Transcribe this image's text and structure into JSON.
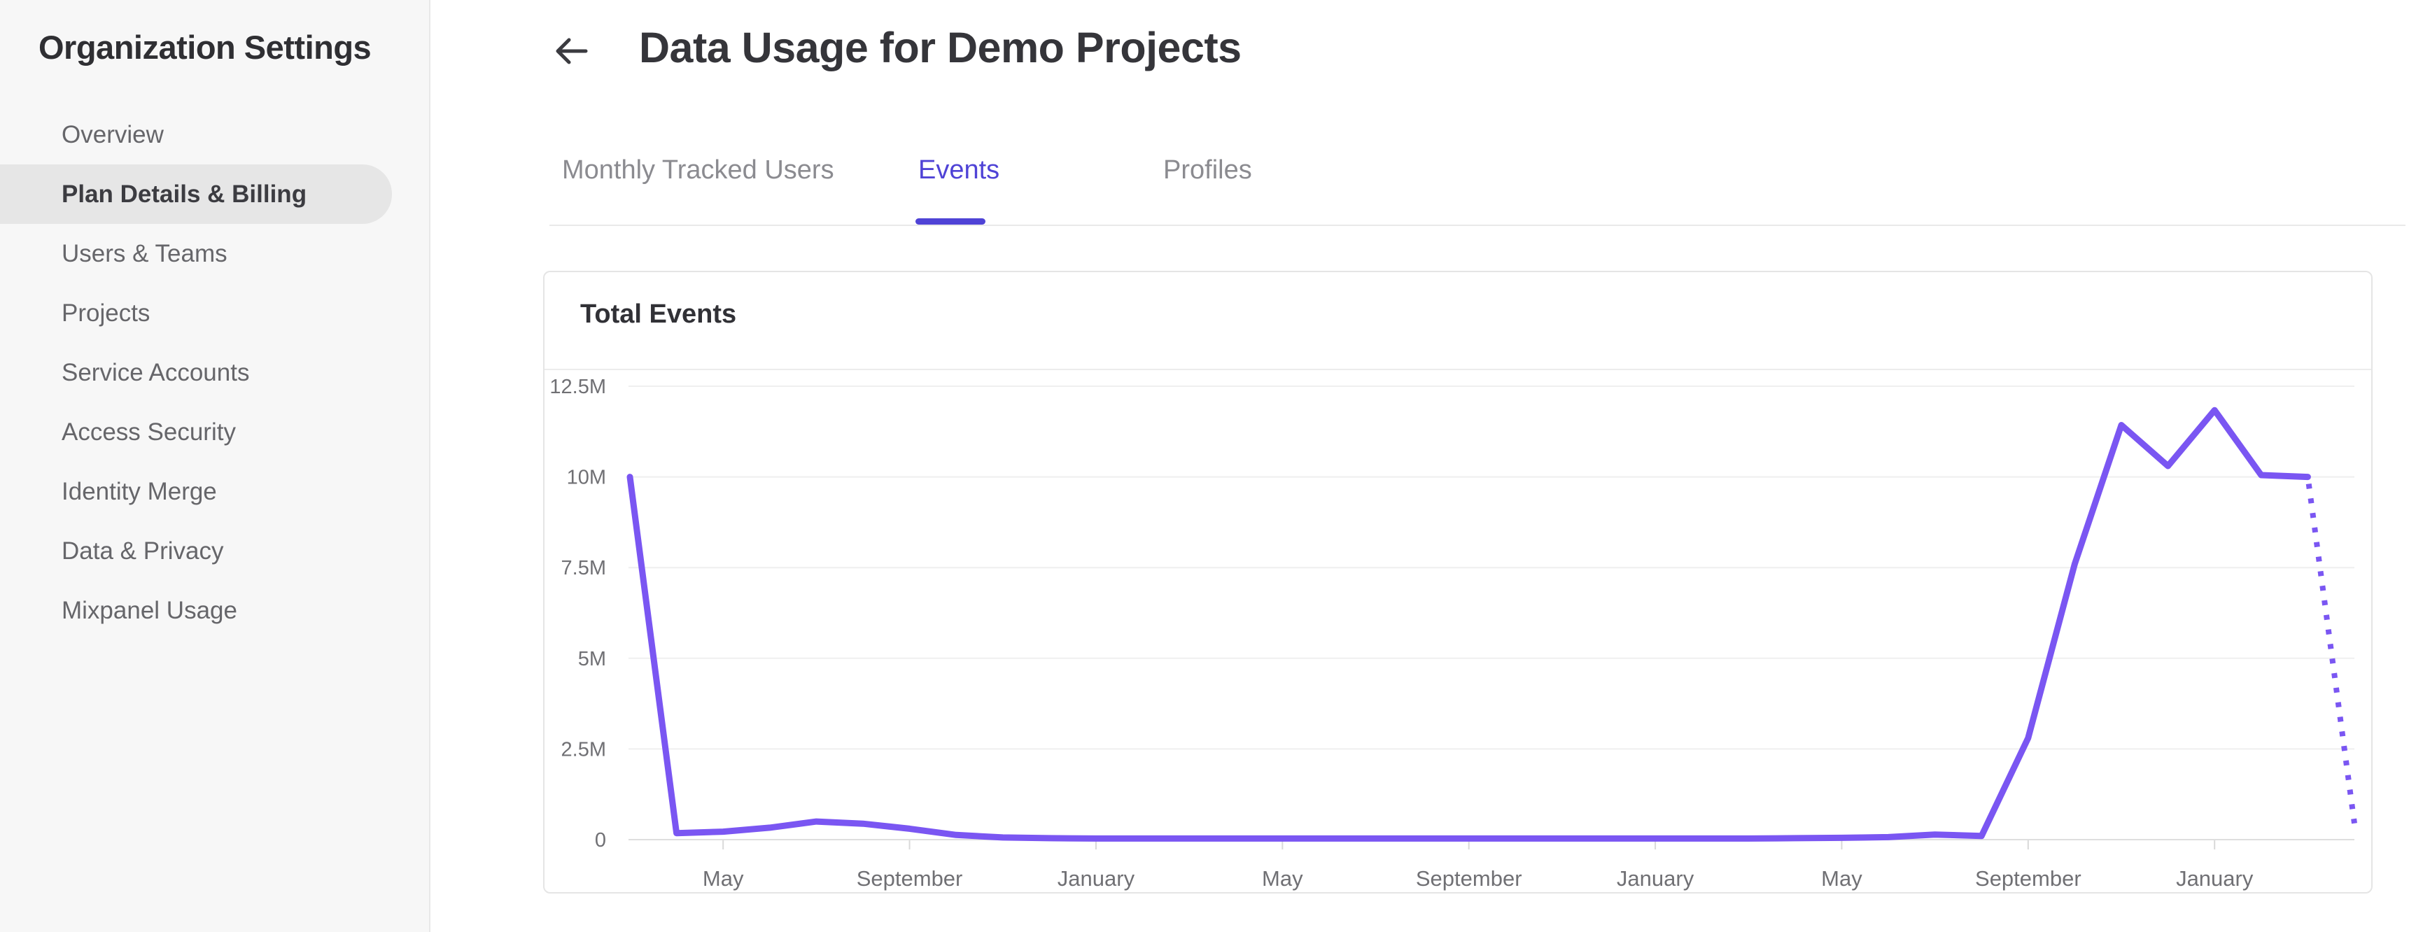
{
  "sidebar": {
    "title": "Organization Settings",
    "selected_bg": "#e6e6e6",
    "items": [
      {
        "label": "Overview",
        "active": false
      },
      {
        "label": "Plan Details & Billing",
        "active": true
      },
      {
        "label": "Users & Teams",
        "active": false
      },
      {
        "label": "Projects",
        "active": false
      },
      {
        "label": "Service Accounts",
        "active": false
      },
      {
        "label": "Access Security",
        "active": false
      },
      {
        "label": "Identity Merge",
        "active": false
      },
      {
        "label": "Data & Privacy",
        "active": false
      },
      {
        "label": "Mixpanel Usage",
        "active": false
      }
    ]
  },
  "header": {
    "back_icon": "left-arrow",
    "title": "Data Usage for Demo Projects"
  },
  "tabs": [
    {
      "label": "Monthly Tracked Users",
      "active": false
    },
    {
      "label": "Events",
      "active": true
    },
    {
      "label": "Profiles",
      "active": false
    }
  ],
  "accent_color": "#4f43d6",
  "card": {
    "title": "Total Events"
  },
  "chart_data": {
    "type": "line",
    "title": "Total Events",
    "series_name": "Total Events",
    "grid": true,
    "legend": "none",
    "ylim_millions": [
      0,
      12.5
    ],
    "y_ticks": [
      "12.5M",
      "10M",
      "7.5M",
      "5M",
      "2.5M",
      "0"
    ],
    "y_gridlines_millions": [
      12.5,
      10,
      7.5,
      5,
      2.5,
      0
    ],
    "x_tick_labels": [
      "May",
      "September",
      "January",
      "May",
      "September",
      "January",
      "May",
      "September",
      "January"
    ],
    "x_tick_indices": [
      2,
      6,
      10,
      14,
      18,
      22,
      26,
      30,
      34
    ],
    "points_monthly_millions": [
      10,
      0.18,
      0.22,
      0.33,
      0.5,
      0.44,
      0.3,
      0.13,
      0.06,
      0.04,
      0.03,
      0.03,
      0.03,
      0.03,
      0.03,
      0.03,
      0.03,
      0.03,
      0.03,
      0.03,
      0.03,
      0.03,
      0.03,
      0.03,
      0.03,
      0.04,
      0.05,
      0.07,
      0.14,
      0.1,
      2.8,
      7.6,
      11.43,
      10.3,
      11.84,
      10.05,
      10,
      0.45
    ],
    "dashed_tail_segments": 1,
    "line_color": "#7a56f2"
  }
}
